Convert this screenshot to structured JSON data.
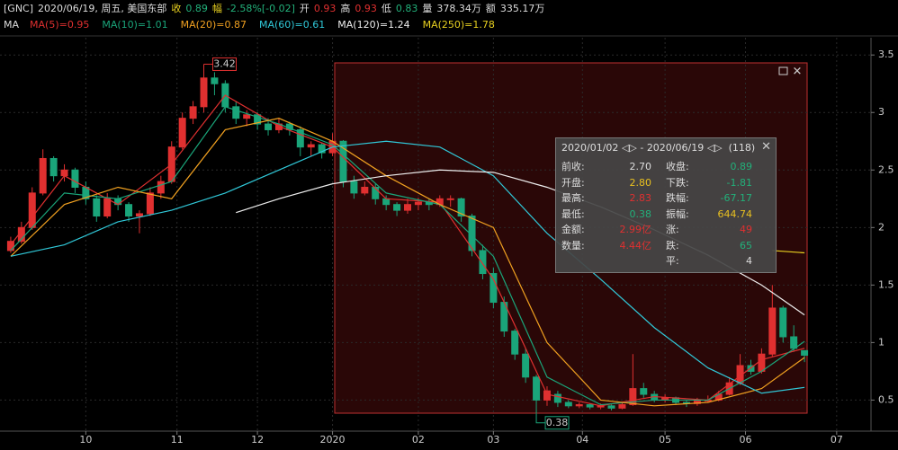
{
  "header": [
    {
      "text": "[GNC]",
      "color": "#dddddd"
    },
    {
      "text": "2020/06/19, 周五, 美国东部",
      "color": "#dddddd"
    },
    {
      "text": "收",
      "color": "#e8d020"
    },
    {
      "text": "0.89",
      "color": "#22b07a"
    },
    {
      "text": "幅",
      "color": "#e8d020"
    },
    {
      "text": "-2.58%[-0.02]",
      "color": "#22b07a"
    },
    {
      "text": "开",
      "color": "#dddddd"
    },
    {
      "text": "0.93",
      "color": "#e03030"
    },
    {
      "text": "高",
      "color": "#dddddd"
    },
    {
      "text": "0.93",
      "color": "#e03030"
    },
    {
      "text": "低",
      "color": "#dddddd"
    },
    {
      "text": "0.83",
      "color": "#22b07a"
    },
    {
      "text": "量",
      "color": "#dddddd"
    },
    {
      "text": "378.34万",
      "color": "#dddddd"
    },
    {
      "text": "额",
      "color": "#dddddd"
    },
    {
      "text": "335.17万",
      "color": "#dddddd"
    }
  ],
  "info": {
    "start": "2020/01/02",
    "sep": "-",
    "end": "2020/06/19",
    "count": "(118)",
    "left": [
      {
        "label": "前收:",
        "value": "2.70",
        "color": "#dddddd"
      },
      {
        "label": "开盘:",
        "value": "2.80",
        "color": "#e8c020"
      },
      {
        "label": "最高:",
        "value": "2.83",
        "color": "#e03030"
      },
      {
        "label": "最低:",
        "value": "0.38",
        "color": "#22b07a"
      },
      {
        "label": "金额:",
        "value": "2.99亿",
        "color": "#e03030"
      },
      {
        "label": "数量:",
        "value": "4.44亿",
        "color": "#e03030"
      }
    ],
    "right": [
      {
        "label": "收盘:",
        "value": "0.89",
        "color": "#22b07a"
      },
      {
        "label": "下跌:",
        "value": "-1.81",
        "color": "#22b07a"
      },
      {
        "label": "跌幅:",
        "value": "-67.17",
        "color": "#22b07a"
      },
      {
        "label": "振幅:",
        "value": "644.74",
        "color": "#e8c020"
      },
      {
        "label": "涨:",
        "value": "49",
        "color": "#e03030"
      },
      {
        "label": "跌:",
        "value": "65",
        "color": "#22b07a"
      },
      {
        "label": "平:",
        "value": "4",
        "color": "#dddddd"
      }
    ]
  },
  "chart_data": {
    "type": "candlestick",
    "legend_title": "MA",
    "up_color": "#e03030",
    "down_color": "#1aa57a",
    "candles": [
      [
        1.8,
        1.92,
        1.78,
        1.88
      ],
      [
        1.88,
        2.05,
        1.86,
        2.0
      ],
      [
        2.0,
        2.35,
        1.98,
        2.3
      ],
      [
        2.3,
        2.68,
        2.28,
        2.6
      ],
      [
        2.6,
        2.62,
        2.4,
        2.45
      ],
      [
        2.45,
        2.55,
        2.4,
        2.5
      ],
      [
        2.5,
        2.52,
        2.3,
        2.35
      ],
      [
        2.35,
        2.4,
        2.2,
        2.25
      ],
      [
        2.25,
        2.28,
        2.05,
        2.1
      ],
      [
        2.1,
        2.3,
        2.08,
        2.25
      ],
      [
        2.25,
        2.28,
        2.15,
        2.2
      ],
      [
        2.2,
        2.22,
        2.05,
        2.1
      ],
      [
        2.1,
        2.15,
        1.95,
        2.12
      ],
      [
        2.12,
        2.35,
        2.1,
        2.3
      ],
      [
        2.3,
        2.45,
        2.25,
        2.4
      ],
      [
        2.4,
        2.75,
        2.38,
        2.7
      ],
      [
        2.7,
        3.0,
        2.68,
        2.95
      ],
      [
        2.95,
        3.1,
        2.9,
        3.05
      ],
      [
        3.05,
        3.42,
        3.0,
        3.3
      ],
      [
        3.3,
        3.35,
        3.15,
        3.25
      ],
      [
        3.25,
        3.28,
        3.0,
        3.05
      ],
      [
        3.05,
        3.1,
        2.9,
        2.95
      ],
      [
        2.95,
        3.02,
        2.88,
        2.98
      ],
      [
        2.98,
        3.0,
        2.85,
        2.9
      ],
      [
        2.9,
        2.95,
        2.8,
        2.85
      ],
      [
        2.85,
        2.95,
        2.82,
        2.9
      ],
      [
        2.9,
        2.92,
        2.8,
        2.85
      ],
      [
        2.85,
        2.88,
        2.62,
        2.7
      ],
      [
        2.7,
        2.75,
        2.62,
        2.72
      ],
      [
        2.72,
        2.74,
        2.6,
        2.65
      ],
      [
        2.65,
        2.82,
        2.62,
        2.75
      ],
      [
        2.75,
        2.76,
        2.35,
        2.4
      ],
      [
        2.4,
        2.45,
        2.25,
        2.3
      ],
      [
        2.3,
        2.4,
        2.28,
        2.35
      ],
      [
        2.35,
        2.38,
        2.2,
        2.25
      ],
      [
        2.25,
        2.28,
        2.15,
        2.2
      ],
      [
        2.2,
        2.22,
        2.1,
        2.15
      ],
      [
        2.15,
        2.25,
        2.12,
        2.2
      ],
      [
        2.2,
        2.26,
        2.15,
        2.22
      ],
      [
        2.22,
        2.25,
        2.15,
        2.2
      ],
      [
        2.2,
        2.28,
        2.18,
        2.25
      ],
      [
        2.25,
        2.28,
        2.18,
        2.25
      ],
      [
        2.25,
        2.26,
        2.05,
        2.1
      ],
      [
        2.1,
        2.12,
        1.75,
        1.8
      ],
      [
        1.8,
        1.85,
        1.55,
        1.6
      ],
      [
        1.6,
        1.65,
        1.3,
        1.35
      ],
      [
        1.35,
        1.4,
        1.05,
        1.1
      ],
      [
        1.1,
        1.12,
        0.85,
        0.9
      ],
      [
        0.9,
        0.95,
        0.65,
        0.7
      ],
      [
        0.7,
        0.72,
        0.38,
        0.5
      ],
      [
        0.5,
        0.62,
        0.45,
        0.58
      ],
      [
        0.55,
        0.58,
        0.44,
        0.48
      ],
      [
        0.48,
        0.5,
        0.43,
        0.45
      ],
      [
        0.45,
        0.48,
        0.43,
        0.46
      ],
      [
        0.46,
        0.47,
        0.42,
        0.44
      ],
      [
        0.44,
        0.47,
        0.42,
        0.45
      ],
      [
        0.45,
        0.46,
        0.41,
        0.43
      ],
      [
        0.43,
        0.48,
        0.42,
        0.46
      ],
      [
        0.46,
        0.9,
        0.45,
        0.6
      ],
      [
        0.6,
        0.65,
        0.52,
        0.55
      ],
      [
        0.55,
        0.58,
        0.48,
        0.5
      ],
      [
        0.5,
        0.55,
        0.48,
        0.52
      ],
      [
        0.52,
        0.53,
        0.46,
        0.48
      ],
      [
        0.48,
        0.5,
        0.44,
        0.47
      ],
      [
        0.47,
        0.52,
        0.45,
        0.5
      ],
      [
        0.5,
        0.54,
        0.48,
        0.5
      ],
      [
        0.5,
        0.58,
        0.49,
        0.55
      ],
      [
        0.55,
        0.7,
        0.54,
        0.65
      ],
      [
        0.65,
        0.9,
        0.63,
        0.8
      ],
      [
        0.8,
        0.85,
        0.72,
        0.75
      ],
      [
        0.75,
        0.95,
        0.73,
        0.9
      ],
      [
        0.9,
        1.5,
        0.88,
        1.3
      ],
      [
        1.3,
        1.32,
        1.0,
        1.05
      ],
      [
        1.05,
        1.15,
        0.92,
        0.95
      ],
      [
        0.93,
        0.93,
        0.83,
        0.89
      ]
    ],
    "series": [
      {
        "name": "MA(5)=0.95",
        "color": "#e03030",
        "x": [
          0,
          5,
          10,
          15,
          20,
          25,
          30,
          35,
          40,
          45,
          50,
          55,
          60,
          65,
          70,
          74
        ],
        "values": [
          1.85,
          2.45,
          2.2,
          2.55,
          3.15,
          2.88,
          2.7,
          2.25,
          2.22,
          1.55,
          0.55,
          0.45,
          0.53,
          0.5,
          0.85,
          0.95
        ]
      },
      {
        "name": "MA(10)=1.01",
        "color": "#1aa57a",
        "x": [
          0,
          5,
          10,
          15,
          20,
          25,
          30,
          35,
          40,
          45,
          50,
          55,
          60,
          65,
          70,
          74
        ],
        "values": [
          1.8,
          2.3,
          2.25,
          2.4,
          3.05,
          2.9,
          2.72,
          2.3,
          2.2,
          1.75,
          0.7,
          0.46,
          0.5,
          0.5,
          0.75,
          1.01
        ]
      },
      {
        "name": "MA(20)=0.87",
        "color": "#f0a020",
        "x": [
          0,
          5,
          10,
          15,
          20,
          25,
          30,
          35,
          40,
          45,
          50,
          55,
          60,
          65,
          70,
          74
        ],
        "values": [
          1.75,
          2.2,
          2.35,
          2.25,
          2.85,
          2.95,
          2.75,
          2.45,
          2.2,
          2.0,
          1.0,
          0.5,
          0.45,
          0.48,
          0.6,
          0.87
        ]
      },
      {
        "name": "MA(60)=0.61",
        "color": "#30c8d8",
        "x": [
          0,
          5,
          10,
          15,
          20,
          25,
          30,
          35,
          40,
          45,
          50,
          55,
          60,
          65,
          70,
          74
        ],
        "values": [
          1.75,
          1.85,
          2.05,
          2.15,
          2.3,
          2.5,
          2.7,
          2.75,
          2.7,
          2.45,
          1.95,
          1.55,
          1.13,
          0.78,
          0.56,
          0.61
        ]
      },
      {
        "name": "MA(120)=1.24",
        "color": "#eeeeee",
        "x": [
          21,
          25,
          30,
          35,
          40,
          45,
          50,
          55,
          60,
          65,
          70,
          74
        ],
        "values": [
          2.13,
          2.25,
          2.38,
          2.45,
          2.5,
          2.48,
          2.35,
          2.18,
          1.98,
          1.76,
          1.5,
          1.24
        ]
      },
      {
        "name": "MA(250)=1.78",
        "color": "#e8d020",
        "x": [
          71,
          74
        ],
        "values": [
          1.8,
          1.78
        ]
      }
    ],
    "ylim": [
      0.23,
      3.65
    ],
    "yticks": [
      0.5,
      1,
      1.5,
      2,
      2.5,
      3,
      3.5
    ],
    "xlim": [
      -1,
      80.2
    ],
    "xticks": [
      {
        "value": 7,
        "label": "10"
      },
      {
        "value": 15.5,
        "label": "11"
      },
      {
        "value": 23,
        "label": "12"
      },
      {
        "value": 30,
        "label": "2020"
      },
      {
        "value": 38,
        "label": "02"
      },
      {
        "value": 45,
        "label": "03"
      },
      {
        "value": 53.3,
        "label": "04"
      },
      {
        "value": 61,
        "label": "05"
      },
      {
        "value": 68.5,
        "label": "06"
      },
      {
        "value": 77,
        "label": "07"
      }
    ],
    "grid": true
  }
}
